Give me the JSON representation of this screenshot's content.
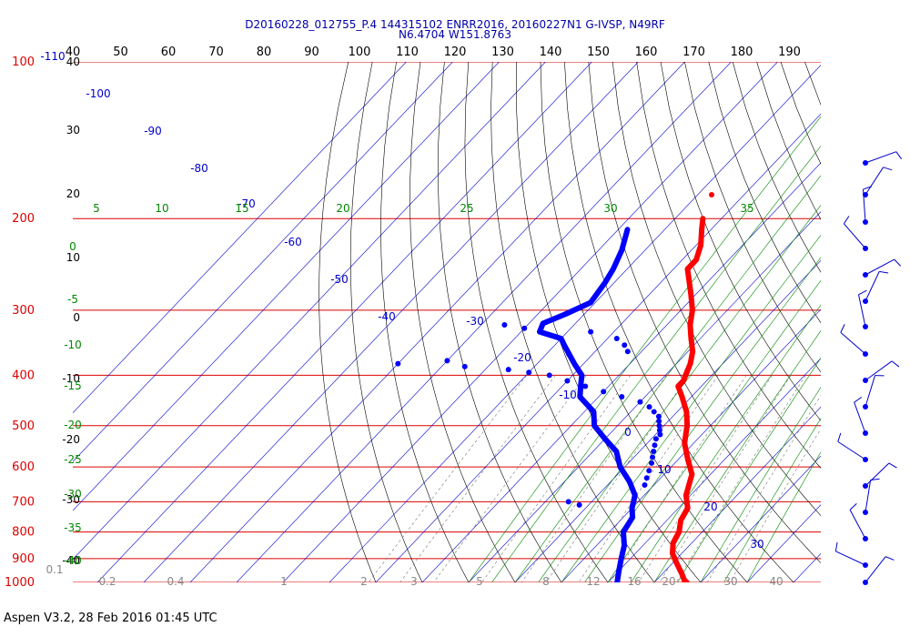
{
  "chart_data": {
    "type": "scatter",
    "title": "D20160228_012755_P.4 144315102 ENRR2016, 20160227N1 G-IVSP, N49RF",
    "subtitle": "N6.4704 W151.8763",
    "pressure_levels": [
      100,
      200,
      300,
      400,
      500,
      600,
      700,
      800,
      900,
      1000
    ],
    "pressure_range": [
      100,
      1000
    ],
    "top_temperature_ticks": [
      "40",
      "50",
      "60",
      "70",
      "80",
      "90",
      "100",
      "110",
      "120",
      "130",
      "140",
      "150",
      "160",
      "170",
      "180",
      "190"
    ],
    "skewed_isotherm_labels": [
      "-110",
      "-100",
      "-90",
      "-80",
      "-70",
      "-60",
      "-50",
      "-40",
      "-30",
      "-20",
      "-10",
      "0",
      "10",
      "20",
      "30"
    ],
    "left_height_labels": [
      "40",
      "30",
      "20",
      "10",
      "0",
      "-10",
      "-20",
      "-30",
      "-40"
    ],
    "mixing_ratio_labels": [
      "0.1",
      "0.2",
      "0.4",
      "1",
      "2",
      "3",
      "5",
      "8",
      "12",
      "16",
      "20",
      "30",
      "40"
    ],
    "green_left_labels": [
      "0",
      "-5",
      "-10",
      "-15",
      "-20",
      "-25",
      "-30",
      "-35",
      "-40"
    ],
    "green_top_labels": [
      "5",
      "10",
      "15",
      "20",
      "25",
      "30",
      "35"
    ],
    "series": [
      {
        "name": "",
        "color": "#ff0000",
        "points": [
          [
            200,
            -44
          ],
          [
            210,
            -42
          ],
          [
            225,
            -39
          ],
          [
            240,
            -37
          ],
          [
            250,
            -37
          ],
          [
            262,
            -34.5
          ],
          [
            280,
            -31
          ],
          [
            300,
            -27.5
          ],
          [
            320,
            -25
          ],
          [
            340,
            -22
          ],
          [
            360,
            -19
          ],
          [
            380,
            -17
          ],
          [
            395,
            -16
          ],
          [
            410,
            -15
          ],
          [
            420,
            -15
          ],
          [
            440,
            -12
          ],
          [
            470,
            -8
          ],
          [
            500,
            -5
          ],
          [
            540,
            -2
          ],
          [
            580,
            2
          ],
          [
            620,
            6
          ],
          [
            680,
            9
          ],
          [
            720,
            12
          ],
          [
            760,
            13
          ],
          [
            800,
            15
          ],
          [
            840,
            16
          ],
          [
            880,
            18
          ],
          [
            920,
            21
          ],
          [
            960,
            24
          ],
          [
            990,
            26
          ],
          [
            1000,
            27
          ]
        ],
        "extra_points": [
          [
            180,
            -47
          ]
        ]
      },
      {
        "name": "",
        "color": "#0000ff",
        "points": [
          [
            210,
            -58
          ],
          [
            230,
            -55
          ],
          [
            250,
            -53
          ],
          [
            265,
            -52
          ],
          [
            290,
            -51
          ],
          [
            305,
            -54
          ],
          [
            318,
            -57
          ],
          [
            330,
            -56
          ],
          [
            340,
            -50
          ],
          [
            350,
            -48
          ],
          [
            380,
            -42
          ],
          [
            400,
            -38
          ],
          [
            420,
            -36
          ],
          [
            440,
            -34
          ],
          [
            470,
            -28
          ],
          [
            500,
            -25
          ],
          [
            530,
            -20
          ],
          [
            560,
            -15
          ],
          [
            600,
            -11
          ],
          [
            640,
            -6
          ],
          [
            680,
            -2
          ],
          [
            720,
            0
          ],
          [
            750,
            2
          ],
          [
            800,
            3
          ],
          [
            850,
            6
          ],
          [
            900,
            8
          ],
          [
            950,
            10
          ],
          [
            1000,
            12
          ]
        ],
        "scatter_points": [
          [
            320,
            -65
          ],
          [
            325,
            -60
          ],
          [
            330,
            -45
          ],
          [
            340,
            -38
          ],
          [
            350,
            -35
          ],
          [
            360,
            -33
          ],
          [
            365,
            -45
          ],
          [
            375,
            -70
          ],
          [
            380,
            -80
          ],
          [
            385,
            -65
          ],
          [
            390,
            -55
          ],
          [
            395,
            -50
          ],
          [
            400,
            -45
          ],
          [
            410,
            -40
          ],
          [
            420,
            -35
          ],
          [
            430,
            -30
          ],
          [
            440,
            -25
          ],
          [
            450,
            -20
          ],
          [
            460,
            -17
          ],
          [
            470,
            -15
          ],
          [
            480,
            -13
          ],
          [
            490,
            -12
          ],
          [
            500,
            -11
          ],
          [
            510,
            -10
          ],
          [
            520,
            -9
          ],
          [
            530,
            -9
          ],
          [
            545,
            -8
          ],
          [
            560,
            -7
          ],
          [
            575,
            -6
          ],
          [
            590,
            -5
          ],
          [
            610,
            -4
          ],
          [
            630,
            -3
          ],
          [
            650,
            -2
          ],
          [
            700,
            -15
          ],
          [
            710,
            -12
          ]
        ]
      }
    ]
  },
  "footer": "Aspen V3.2, 28 Feb 2016  01:45 UTC"
}
